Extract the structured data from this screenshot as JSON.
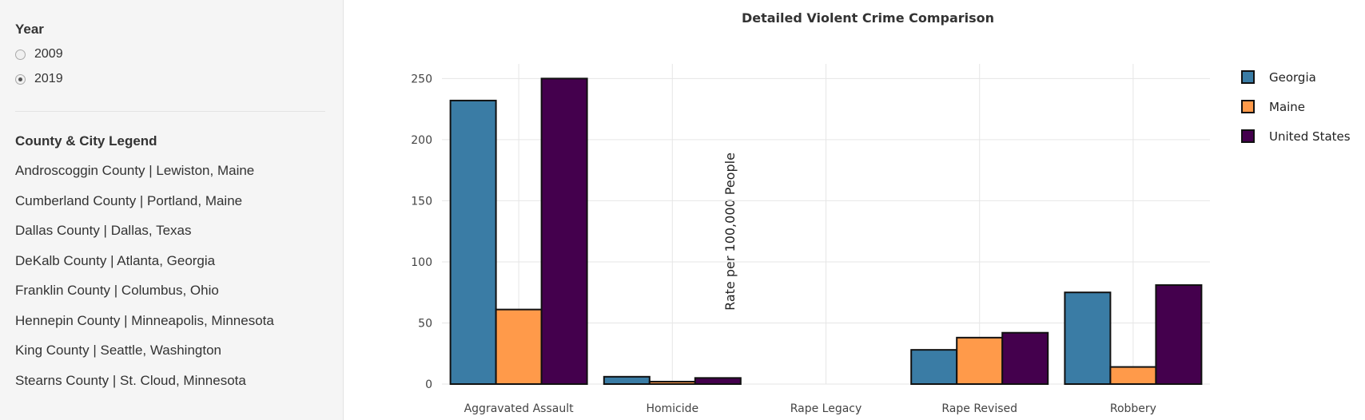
{
  "sidebar": {
    "year_title": "Year",
    "year_options": [
      {
        "label": "2009",
        "checked": false
      },
      {
        "label": "2019",
        "checked": true
      }
    ],
    "legend_title": "County & City Legend",
    "legend_items": [
      "Androscoggin County | Lewiston, Maine",
      "Cumberland County | Portland, Maine",
      "Dallas County | Dallas, Texas",
      "DeKalb County | Atlanta, Georgia",
      "Franklin County | Columbus, Ohio",
      "Hennepin County | Minneapolis, Minnesota",
      "King County | Seattle, Washington",
      "Stearns County | St. Cloud, Minnesota"
    ]
  },
  "chart_data": {
    "type": "bar",
    "title": "Detailed Violent Crime Comparison",
    "xlabel": "",
    "ylabel": "Rate per 100,000 People",
    "categories": [
      "Aggravated Assault",
      "Homicide",
      "Rape Legacy",
      "Rape Revised",
      "Robbery"
    ],
    "series": [
      {
        "name": "Georgia",
        "color": "#3a7ca5",
        "values": [
          232,
          6,
          0,
          28,
          75
        ]
      },
      {
        "name": "Maine",
        "color": "#ff9a4a",
        "values": [
          61,
          2,
          0,
          38,
          14
        ]
      },
      {
        "name": "United States",
        "color": "#44004d",
        "values": [
          250,
          5,
          0,
          42,
          81
        ]
      }
    ],
    "ylim": [
      0,
      262
    ],
    "yticks": [
      0,
      50,
      100,
      150,
      200,
      250
    ],
    "grid": true,
    "legend_position": "right"
  }
}
